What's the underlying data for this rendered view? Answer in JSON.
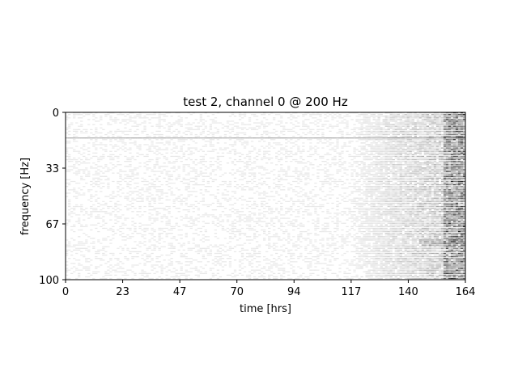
{
  "chart_data": {
    "type": "heatmap",
    "title": "test 2, channel 0 @ 200 Hz",
    "xlabel": "time [hrs]",
    "ylabel": "frequency [Hz]",
    "xlim": [
      0,
      164
    ],
    "ylim": [
      0,
      100
    ],
    "y_inverted": true,
    "x_ticks": [
      "0",
      "23",
      "47",
      "70",
      "94",
      "117",
      "140",
      "164"
    ],
    "y_ticks": [
      "0",
      "33",
      "67",
      "100"
    ],
    "colormap": "grayscale (white = low, black = high)",
    "grid": false,
    "description_of_pattern": "faint horizontal streaks at most frequencies; intensity increases sharply after ~117 hrs and is darkest near 164 hrs; a persistent darker line near 15 Hz"
  }
}
